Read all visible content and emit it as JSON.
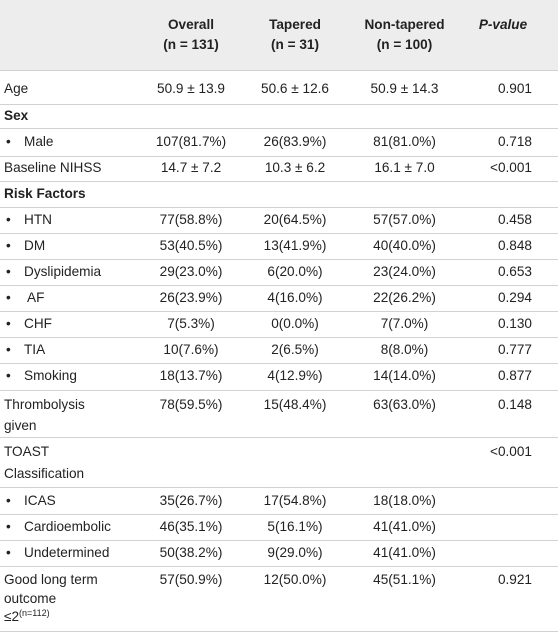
{
  "header": {
    "col_overall": "Overall",
    "n_overall": "(n = 131)",
    "col_tapered": "Tapered",
    "n_tapered": "(n = 31)",
    "col_nontapered": "Non-tapered",
    "n_nontapered": "(n = 100)",
    "col_p": "P-value"
  },
  "rows": {
    "age": {
      "label": "Age",
      "overall": "50.9 ± 13.9",
      "tapered": "50.6 ± 12.6",
      "nontapered": "50.9 ± 14.3",
      "p": "0.901"
    },
    "sex": {
      "label": "Sex"
    },
    "male": {
      "label": "Male",
      "overall": "107(81.7%)",
      "tapered": "26(83.9%)",
      "nontapered": "81(81.0%)",
      "p": "0.718"
    },
    "nihss": {
      "label": "Baseline NIHSS",
      "overall": "14.7 ± 7.2",
      "tapered": "10.3 ± 6.2",
      "nontapered": "16.1 ± 7.0",
      "p": "<0.001"
    },
    "risk": {
      "label": "Risk Factors"
    },
    "htn": {
      "label": "HTN",
      "overall": "77(58.8%)",
      "tapered": "20(64.5%)",
      "nontapered": "57(57.0%)",
      "p": "0.458"
    },
    "dm": {
      "label": "DM",
      "overall": "53(40.5%)",
      "tapered": "13(41.9%)",
      "nontapered": "40(40.0%)",
      "p": "0.848"
    },
    "dys": {
      "label": "Dyslipidemia",
      "overall": "29(23.0%)",
      "tapered": "6(20.0%)",
      "nontapered": "23(24.0%)",
      "p": "0.653"
    },
    "af": {
      "label": " AF",
      "overall": "26(23.9%)",
      "tapered": "4(16.0%)",
      "nontapered": "22(26.2%)",
      "p": "0.294"
    },
    "chf": {
      "label": "CHF",
      "overall": "7(5.3%)",
      "tapered": "0(0.0%)",
      "nontapered": "7(7.0%)",
      "p": "0.130"
    },
    "tia": {
      "label": "TIA",
      "overall": "10(7.6%)",
      "tapered": "2(6.5%)",
      "nontapered": "8(8.0%)",
      "p": "0.777"
    },
    "smoking": {
      "label": "Smoking",
      "overall": "18(13.7%)",
      "tapered": "4(12.9%)",
      "nontapered": "14(14.0%)",
      "p": "0.877"
    },
    "thromb": {
      "label_1": "Thrombolysis",
      "label_2": "given",
      "overall": "78(59.5%)",
      "tapered": "15(48.4%)",
      "nontapered": "63(63.0%)",
      "p": "0.148"
    },
    "toast": {
      "label_1": "TOAST",
      "label_2": "Classification",
      "p": "<0.001"
    },
    "icas": {
      "label": "ICAS",
      "overall": "35(26.7%)",
      "tapered": "17(54.8%)",
      "nontapered": "18(18.0%)"
    },
    "cardio": {
      "label": "Cardioembolic",
      "overall": "46(35.1%)",
      "tapered": "5(16.1%)",
      "nontapered": "41(41.0%)"
    },
    "undet": {
      "label": "Undetermined",
      "overall": "50(38.2%)",
      "tapered": "9(29.0%)",
      "nontapered": "41(41.0%)"
    },
    "outcome": {
      "label_1": "Good long term",
      "label_2": "outcome",
      "label_3": "≤2",
      "label_sup": "(n=112)",
      "overall": "57(50.9%)",
      "tapered": "12(50.0%)",
      "nontapered": "45(51.1%)",
      "p": "0.921"
    }
  }
}
